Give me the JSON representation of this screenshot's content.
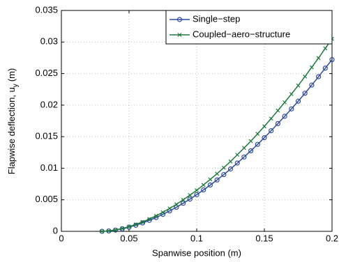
{
  "chart_data": {
    "type": "line",
    "xlabel": "Spanwise position (m)",
    "ylabel": {
      "main": "Flapwise deflection, u",
      "sub": "y",
      "unit": "(m)"
    },
    "x": [
      0.03,
      0.035,
      0.04,
      0.045,
      0.05,
      0.055,
      0.06,
      0.065,
      0.07,
      0.075,
      0.08,
      0.085,
      0.09,
      0.095,
      0.1,
      0.105,
      0.11,
      0.115,
      0.12,
      0.125,
      0.13,
      0.135,
      0.14,
      0.145,
      0.15,
      0.155,
      0.16,
      0.165,
      0.17,
      0.175,
      0.18,
      0.185,
      0.19,
      0.195,
      0.2
    ],
    "series": [
      {
        "name": "Single−step",
        "color": "#2e4b9b",
        "marker": "circle",
        "values": [
          0,
          6e-05,
          0.0002,
          0.0004,
          0.00066,
          0.00097,
          0.00133,
          0.00174,
          0.00219,
          0.00269,
          0.00324,
          0.00382,
          0.00445,
          0.00511,
          0.00581,
          0.00656,
          0.00734,
          0.00814,
          0.00899,
          0.00988,
          0.01082,
          0.01178,
          0.01276,
          0.01378,
          0.01484,
          0.01594,
          0.01707,
          0.01823,
          0.0194,
          0.02062,
          0.02188,
          0.02318,
          0.0245,
          0.02586,
          0.0272
        ]
      },
      {
        "name": "Coupled−aero−structure",
        "color": "#1d7a3c",
        "marker": "x",
        "values": [
          0,
          7e-05,
          0.00022,
          0.00045,
          0.00074,
          0.00109,
          0.00149,
          0.00195,
          0.00245,
          0.00302,
          0.00363,
          0.00428,
          0.00499,
          0.00573,
          0.00651,
          0.00735,
          0.00823,
          0.00913,
          0.01008,
          0.01108,
          0.01213,
          0.01321,
          0.0143,
          0.01545,
          0.01664,
          0.01787,
          0.01914,
          0.02044,
          0.02175,
          0.02311,
          0.02453,
          0.02599,
          0.02746,
          0.02899,
          0.0305
        ]
      }
    ],
    "xlim": [
      0,
      0.2
    ],
    "xticks": [
      0,
      0.05,
      0.1,
      0.15,
      0.2
    ],
    "ylim": [
      0,
      0.035
    ],
    "yticks": [
      0,
      0.005,
      0.01,
      0.015,
      0.02,
      0.025,
      0.03,
      0.035
    ],
    "grid": true,
    "legend": "upper right"
  }
}
